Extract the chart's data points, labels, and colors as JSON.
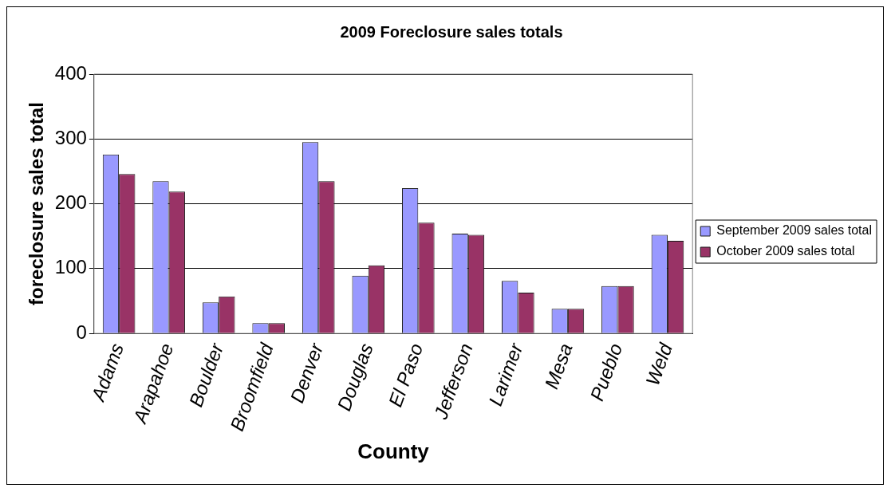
{
  "chart_data": {
    "type": "bar",
    "title": "2009 Foreclosure sales totals",
    "xlabel": "County",
    "ylabel": "foreclosure sales total",
    "categories": [
      "Adams",
      "Arapahoe",
      "Boulder",
      "Broomfield",
      "Denver",
      "Douglas",
      "El Paso",
      "Jefferson",
      "Larimer",
      "Mesa",
      "Pueblo",
      "Weld"
    ],
    "series": [
      {
        "name": "September 2009 sales total",
        "color": "#9999ff",
        "values": [
          276,
          235,
          48,
          16,
          295,
          89,
          224,
          154,
          81,
          38,
          73,
          152
        ]
      },
      {
        "name": "October 2009 sales total",
        "color": "#993366",
        "values": [
          246,
          219,
          57,
          16,
          235,
          105,
          171,
          152,
          63,
          38,
          73,
          143
        ]
      }
    ],
    "ylim": [
      0,
      400
    ],
    "yticks": [
      0,
      100,
      200,
      300,
      400
    ],
    "grid": "y",
    "legend": "right"
  }
}
